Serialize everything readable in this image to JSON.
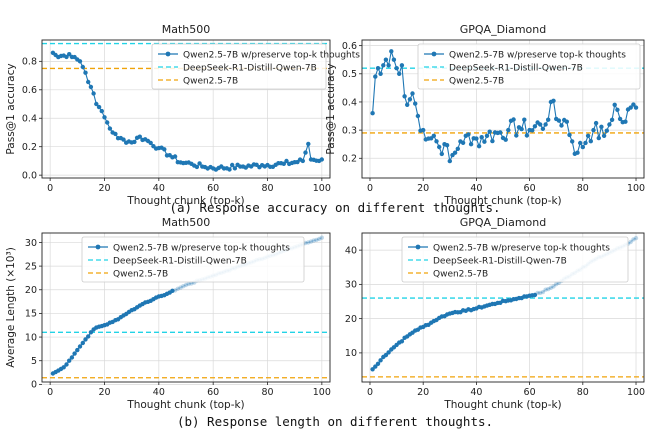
{
  "captions": {
    "a": "(a) Response accuracy on different thoughts.",
    "b": "(b) Response length on different thoughts."
  },
  "colors": {
    "series": "#1f77b4",
    "distill": "#22d3e6",
    "base": "#f0a30a",
    "grid": "#d9d9d9"
  },
  "chart_data": [
    {
      "id": "acc_math",
      "type": "line",
      "title": "Math500",
      "xlabel": "Thought chunk (top-k)",
      "ylabel": "Pass@1 accuracy",
      "xlim": [
        -3,
        103
      ],
      "ylim": [
        -0.02,
        0.95
      ],
      "xticks": [
        0,
        20,
        40,
        60,
        80,
        100
      ],
      "yticks": [
        0.0,
        0.2,
        0.4,
        0.6,
        0.8
      ],
      "ytick_labels": [
        "0.0",
        "0.2",
        "0.4",
        "0.6",
        "0.8"
      ],
      "legend": [
        "Qwen2.5-7B w/preserve top-k thoughts",
        "DeepSeek-R1-Distill-Qwen-7B",
        "Qwen2.5-7B"
      ],
      "hlines": {
        "distill": 0.925,
        "base": 0.75
      },
      "markers": true,
      "series_key": [
        [
          1,
          0.86
        ],
        [
          3,
          0.83
        ],
        [
          5,
          0.84
        ],
        [
          7,
          0.85
        ],
        [
          9,
          0.83
        ],
        [
          11,
          0.8
        ],
        [
          13,
          0.72
        ],
        [
          15,
          0.62
        ],
        [
          17,
          0.5
        ],
        [
          19,
          0.45
        ],
        [
          21,
          0.37
        ],
        [
          23,
          0.3
        ],
        [
          25,
          0.26
        ],
        [
          27,
          0.25
        ],
        [
          30,
          0.23
        ],
        [
          33,
          0.27
        ],
        [
          36,
          0.24
        ],
        [
          40,
          0.19
        ],
        [
          44,
          0.14
        ],
        [
          48,
          0.09
        ],
        [
          52,
          0.08
        ],
        [
          56,
          0.06
        ],
        [
          62,
          0.05
        ],
        [
          70,
          0.06
        ],
        [
          78,
          0.07
        ],
        [
          86,
          0.08
        ],
        [
          93,
          0.1
        ],
        [
          95,
          0.22
        ],
        [
          96,
          0.11
        ],
        [
          100,
          0.11
        ]
      ],
      "series_noise": 0.018
    },
    {
      "id": "acc_gpqa",
      "type": "line",
      "title": "GPQA_Diamond",
      "xlabel": "Thought chunk (top-k)",
      "ylabel": "Pass@1 accuracy",
      "xlim": [
        -3,
        103
      ],
      "ylim": [
        0.13,
        0.62
      ],
      "xticks": [
        0,
        20,
        40,
        60,
        80,
        100
      ],
      "yticks": [
        0.2,
        0.3,
        0.4,
        0.5,
        0.6
      ],
      "ytick_labels": [
        "0.2",
        "0.3",
        "0.4",
        "0.5",
        "0.6"
      ],
      "legend": [
        "Qwen2.5-7B w/preserve top-k thoughts",
        "DeepSeek-R1-Distill-Qwen-7B",
        "Qwen2.5-7B"
      ],
      "hlines": {
        "distill": 0.52,
        "base": 0.29
      },
      "markers": true,
      "series_key": [
        [
          1,
          0.36
        ],
        [
          2,
          0.49
        ],
        [
          3,
          0.52
        ],
        [
          4,
          0.5
        ],
        [
          5,
          0.53
        ],
        [
          6,
          0.55
        ],
        [
          7,
          0.53
        ],
        [
          8,
          0.58
        ],
        [
          9,
          0.55
        ],
        [
          10,
          0.52
        ],
        [
          11,
          0.5
        ],
        [
          12,
          0.53
        ],
        [
          13,
          0.42
        ],
        [
          14,
          0.39
        ],
        [
          16,
          0.43
        ],
        [
          18,
          0.35
        ],
        [
          20,
          0.3
        ],
        [
          22,
          0.27
        ],
        [
          24,
          0.28
        ],
        [
          26,
          0.24
        ],
        [
          28,
          0.25
        ],
        [
          30,
          0.19
        ],
        [
          32,
          0.22
        ],
        [
          34,
          0.26
        ],
        [
          36,
          0.28
        ],
        [
          38,
          0.25
        ],
        [
          40,
          0.27
        ],
        [
          44,
          0.28
        ],
        [
          48,
          0.29
        ],
        [
          52,
          0.3
        ],
        [
          56,
          0.31
        ],
        [
          60,
          0.3
        ],
        [
          64,
          0.32
        ],
        [
          66,
          0.32
        ],
        [
          68,
          0.4
        ],
        [
          70,
          0.34
        ],
        [
          74,
          0.33
        ],
        [
          76,
          0.26
        ],
        [
          78,
          0.22
        ],
        [
          82,
          0.28
        ],
        [
          84,
          0.3
        ],
        [
          88,
          0.28
        ],
        [
          90,
          0.32
        ],
        [
          92,
          0.39
        ],
        [
          94,
          0.34
        ],
        [
          96,
          0.33
        ],
        [
          98,
          0.38
        ],
        [
          100,
          0.38
        ]
      ],
      "series_noise": 0.035
    },
    {
      "id": "len_math",
      "type": "line",
      "title": "Math500",
      "xlabel": "Thought chunk (top-k)",
      "ylabel": "Average Length (×10³)",
      "xlim": [
        -3,
        103
      ],
      "ylim": [
        0.5,
        32
      ],
      "xticks": [
        0,
        20,
        40,
        60,
        80,
        100
      ],
      "yticks": [
        0,
        5,
        10,
        15,
        20,
        25,
        30
      ],
      "ytick_labels": [
        "0",
        "5",
        "10",
        "15",
        "20",
        "25",
        "30"
      ],
      "legend": [
        "Qwen2.5-7B w/preserve top-k thoughts",
        "DeepSeek-R1-Distill-Qwen-7B",
        "Qwen2.5-7B"
      ],
      "hlines": {
        "distill": 11.0,
        "base": 1.4
      },
      "markers": true,
      "fade_from": 45,
      "series_key": [
        [
          1,
          2.3
        ],
        [
          3,
          2.9
        ],
        [
          5,
          3.6
        ],
        [
          7,
          5.0
        ],
        [
          9,
          6.5
        ],
        [
          11,
          8.0
        ],
        [
          13,
          9.5
        ],
        [
          15,
          11.0
        ],
        [
          17,
          12.0
        ],
        [
          20,
          12.5
        ],
        [
          23,
          13.2
        ],
        [
          26,
          14.2
        ],
        [
          29,
          15.3
        ],
        [
          32,
          16.3
        ],
        [
          35,
          17.3
        ],
        [
          38,
          18.0
        ],
        [
          41,
          18.7
        ],
        [
          44,
          19.4
        ],
        [
          47,
          20.2
        ],
        [
          50,
          21.0
        ],
        [
          55,
          22.0
        ],
        [
          60,
          23.0
        ],
        [
          65,
          24.0
        ],
        [
          70,
          25.0
        ],
        [
          75,
          26.0
        ],
        [
          80,
          27.0
        ],
        [
          85,
          28.0
        ],
        [
          90,
          29.0
        ],
        [
          95,
          30.0
        ],
        [
          100,
          31.0
        ]
      ],
      "series_noise": 0.12
    },
    {
      "id": "len_gpqa",
      "type": "line",
      "title": "GPQA_Diamond",
      "xlabel": "Thought chunk (top-k)",
      "ylabel": "",
      "xlim": [
        -3,
        103
      ],
      "ylim": [
        1.5,
        45
      ],
      "xticks": [
        0,
        20,
        40,
        60,
        80,
        100
      ],
      "yticks": [
        10,
        20,
        30,
        40
      ],
      "ytick_labels": [
        "10",
        "20",
        "30",
        "40"
      ],
      "legend": [
        "Qwen2.5-7B w/preserve top-k thoughts",
        "DeepSeek-R1-Distill-Qwen-7B",
        "Qwen2.5-7B"
      ],
      "hlines": {
        "distill": 26.0,
        "base": 3.0
      },
      "markers": true,
      "fade_from": 62,
      "series_key": [
        [
          1,
          5.2
        ],
        [
          3,
          6.8
        ],
        [
          5,
          8.8
        ],
        [
          8,
          11.0
        ],
        [
          11,
          13.0
        ],
        [
          14,
          14.8
        ],
        [
          17,
          16.5
        ],
        [
          20,
          17.6
        ],
        [
          23,
          18.8
        ],
        [
          26,
          20.2
        ],
        [
          29,
          21.2
        ],
        [
          32,
          21.9
        ],
        [
          36,
          22.3
        ],
        [
          40,
          23.0
        ],
        [
          44,
          23.8
        ],
        [
          48,
          24.6
        ],
        [
          52,
          25.3
        ],
        [
          56,
          26.0
        ],
        [
          60,
          26.7
        ],
        [
          64,
          27.5
        ],
        [
          68,
          29.0
        ],
        [
          72,
          31.0
        ],
        [
          76,
          33.0
        ],
        [
          80,
          35.0
        ],
        [
          84,
          37.0
        ],
        [
          88,
          38.5
        ],
        [
          92,
          40.0
        ],
        [
          96,
          41.5
        ],
        [
          100,
          43.5
        ]
      ],
      "series_noise": 0.25
    }
  ]
}
